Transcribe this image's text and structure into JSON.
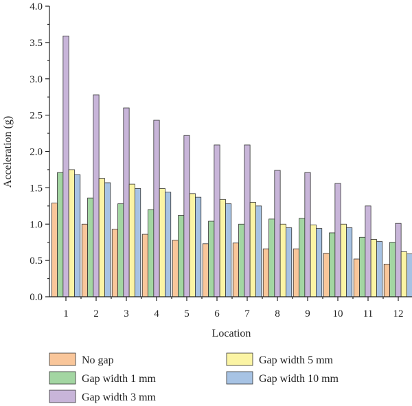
{
  "chart_data": {
    "type": "bar",
    "xlabel": "Location",
    "ylabel": "Acceleration (g)",
    "ylim": [
      0,
      4.0
    ],
    "yticks": [
      "0.0",
      "0.5",
      "1.0",
      "1.5",
      "2.0",
      "2.5",
      "3.0",
      "3.5",
      "4.0"
    ],
    "categories": [
      "1",
      "2",
      "3",
      "4",
      "5",
      "6",
      "7",
      "8",
      "9",
      "10",
      "11",
      "12"
    ],
    "grid": false,
    "legend_position": "bottom",
    "series": [
      {
        "name": "No gap",
        "color": "#f9c69a",
        "values": [
          1.29,
          1.0,
          0.93,
          0.86,
          0.78,
          0.73,
          0.74,
          0.66,
          0.66,
          0.6,
          0.52,
          0.45
        ]
      },
      {
        "name": "Gap width 1 mm",
        "color": "#a3d6a2",
        "values": [
          1.71,
          1.36,
          1.28,
          1.2,
          1.12,
          1.04,
          1.0,
          1.07,
          1.08,
          0.88,
          0.82,
          0.75
        ]
      },
      {
        "name": "Gap width 3 mm",
        "color": "#c8b5d9",
        "values": [
          3.59,
          2.78,
          2.6,
          2.43,
          2.22,
          2.09,
          2.09,
          1.74,
          1.71,
          1.56,
          1.25,
          1.01
        ]
      },
      {
        "name": "Gap width 5 mm",
        "color": "#fbf4a4",
        "values": [
          1.75,
          1.63,
          1.55,
          1.49,
          1.42,
          1.34,
          1.3,
          1.0,
          0.99,
          1.0,
          0.79,
          0.62
        ]
      },
      {
        "name": "Gap width 10 mm",
        "color": "#a7c3e4",
        "values": [
          1.68,
          1.57,
          1.49,
          1.44,
          1.37,
          1.28,
          1.25,
          0.95,
          0.94,
          0.95,
          0.76,
          0.59
        ]
      }
    ]
  }
}
